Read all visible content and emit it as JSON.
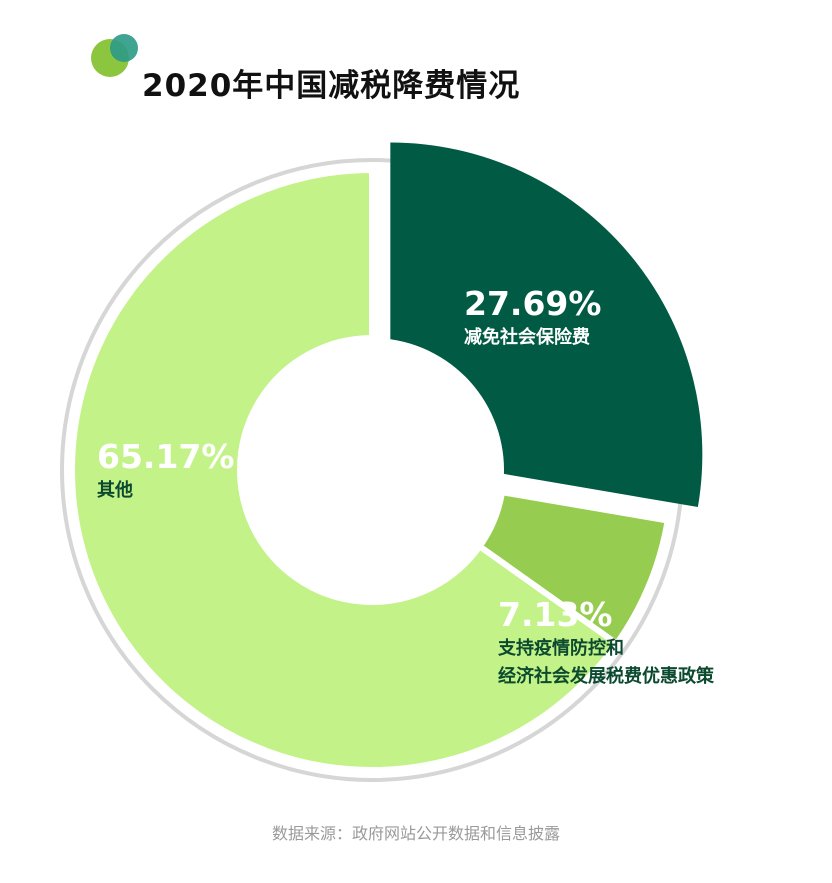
{
  "title": "2020年中国减税降费情况",
  "source": "数据来源：政府网站公开数据和信息披露",
  "colors": {
    "logo_back": "#8cc63f",
    "logo_front": "#2b9a86",
    "ring": "#d6d6d6"
  },
  "chart_data": {
    "type": "pie",
    "style": "donut",
    "title": "2020年中国减税降费情况",
    "unit": "%",
    "slices": [
      {
        "label": "减免社会保险费",
        "value": 27.69,
        "pct_label": "27.69%",
        "color": "#015a43",
        "text_color": "#ffffff"
      },
      {
        "label": "支持疫情防控和\n经济社会发展税费优惠政策",
        "value": 7.13,
        "pct_label": "7.13%",
        "color": "#96cd50",
        "text_color": "#0b4a2f"
      },
      {
        "label": "其他",
        "value": 65.17,
        "pct_label": "65.17%",
        "color": "#c3f288",
        "text_color": "#0b4a2f"
      }
    ]
  }
}
